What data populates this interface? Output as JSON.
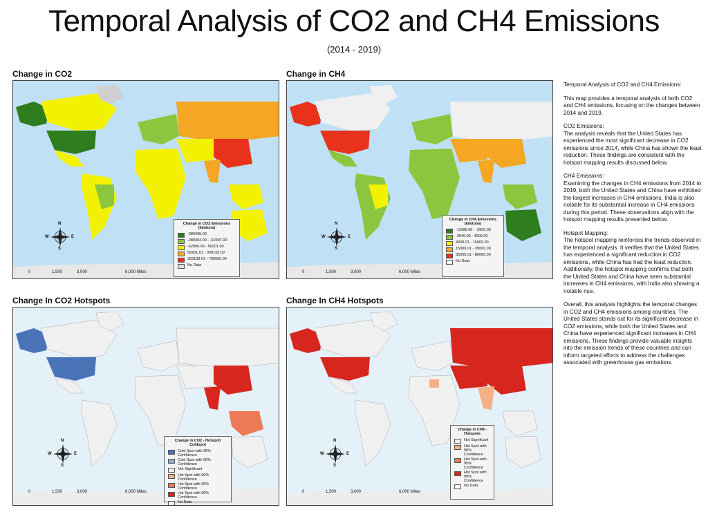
{
  "title": "Temporal Analysis of CO2 and CH4 Emissions",
  "subtitle": "(2014 - 2019)",
  "panels": {
    "co2": {
      "title": "Change in CO2",
      "legend_title": "Change in CO2 Emissions (kilotons)",
      "legend": [
        {
          "label": "-289495.00",
          "color": "#2e7d1f"
        },
        {
          "label": "-289494.99 - -62997.00",
          "color": "#8cc63f"
        },
        {
          "label": "-62996.99 - 56201.00",
          "color": "#f2f200"
        },
        {
          "label": "56201.01 - 309193.00",
          "color": "#f5a623"
        },
        {
          "label": "309193.01 - 700550.00",
          "color": "#e8321c"
        },
        {
          "label": "No Data",
          "color": "#dcdcdc"
        }
      ]
    },
    "ch4": {
      "title": "Change in CH4",
      "legend_title": "Change in CH4 Emissions (kilotons)",
      "legend": [
        {
          "label": "-11596.00 - -3950.00",
          "color": "#2e7d1f"
        },
        {
          "label": "-3949.99 - 4000.00",
          "color": "#8cc63f"
        },
        {
          "label": "4000.01 - 15000.00",
          "color": "#f2f200"
        },
        {
          "label": "15000.01 - 35000.00",
          "color": "#f5a623"
        },
        {
          "label": "35000.01 - 80000.00",
          "color": "#e8321c"
        },
        {
          "label": "No Data",
          "color": "#ffffff"
        }
      ]
    },
    "co2_hot": {
      "title": "Change In CO2 Hotspots",
      "legend_title": "Change in CO2 - Hotspot/ Coldspot",
      "legend": [
        {
          "label": "Cold Spot with 95% Confidence",
          "color": "#4a74b8"
        },
        {
          "label": "Cold Spot with 90% Confidence",
          "color": "#8fa9cf"
        },
        {
          "label": "Not Significant",
          "color": "#f0f0f0"
        },
        {
          "label": "Hot Spot with 90% Confidence",
          "color": "#f4b183"
        },
        {
          "label": "Hot Spot with 95% Confidence",
          "color": "#ed7a56"
        },
        {
          "label": "Hot Spot with 99% Confidence",
          "color": "#d7261e"
        },
        {
          "label": "No Data",
          "color": "#ffffff"
        }
      ]
    },
    "ch4_hot": {
      "title": "Change In CH4 Hotspots",
      "legend_title": "Change in CH4 - Hotspots",
      "legend": [
        {
          "label": "Not Significant",
          "color": "#f0f0f0"
        },
        {
          "label": "Hot Spot with 90% Confidence",
          "color": "#f4b183"
        },
        {
          "label": "Hot Spot with 95% Confidence",
          "color": "#ed7a56"
        },
        {
          "label": "Hot Spot with 99% Confidence",
          "color": "#d7261e"
        },
        {
          "label": "No Data",
          "color": "#ffffff"
        }
      ]
    }
  },
  "scale": {
    "ticks": [
      "0",
      "1,500",
      "3,000",
      "6,000 Miles"
    ]
  },
  "compass": {
    "n": "N",
    "s": "S",
    "e": "E",
    "w": "W"
  },
  "description": [
    "Temporal Analysis of CO2 and CH4 Emissions:",
    "This map provides a temporal analysis of both CO2 and CH4 emissions, focusing on the changes between 2014 and 2019.",
    "CO2 Emissions:\nThe analysis reveals that the United States has experienced the most significant decrease in CO2 emissions since 2014, while China has shown the least reduction. These findings are consistent with the hotspot mapping results discussed below.",
    "CH4 Emissions:\nExamining the changes in CH4 emissions from 2014 to 2019, both the United States and China have exhibited the largest increases in CH4 emissions. India is also notable for its substantial increase in CH4 emissions during this period. These observations align with the hotspot mapping results presented below.",
    "Hotspot Mapping:\nThe hotspot mapping reinforces the trends observed in the temporal analysis. It verifies that the United States has experienced a significant reduction in CO2 emissions, while China has had the least reduction. Additionally, the hotspot mapping confirms that both the United States and China have seen substantial increases in CH4 emissions, with India also showing a notable rise.",
    "Overall, this analysis highlights the temporal changes in CO2 and CH4 emissions among countries. The United States stands out for its significant decrease in CO2 emissions, while both the United States and China have experienced significant increases in CH4 emissions. These findings provide valuable insights into the emission trends of these countries and can inform targeted efforts to address the challenges associated with greenhouse gas emissions."
  ],
  "colors": {
    "ocean": "#bfe0f5",
    "ocean_light": "#e4f1f8",
    "land_gray": "#d0d0d0"
  }
}
